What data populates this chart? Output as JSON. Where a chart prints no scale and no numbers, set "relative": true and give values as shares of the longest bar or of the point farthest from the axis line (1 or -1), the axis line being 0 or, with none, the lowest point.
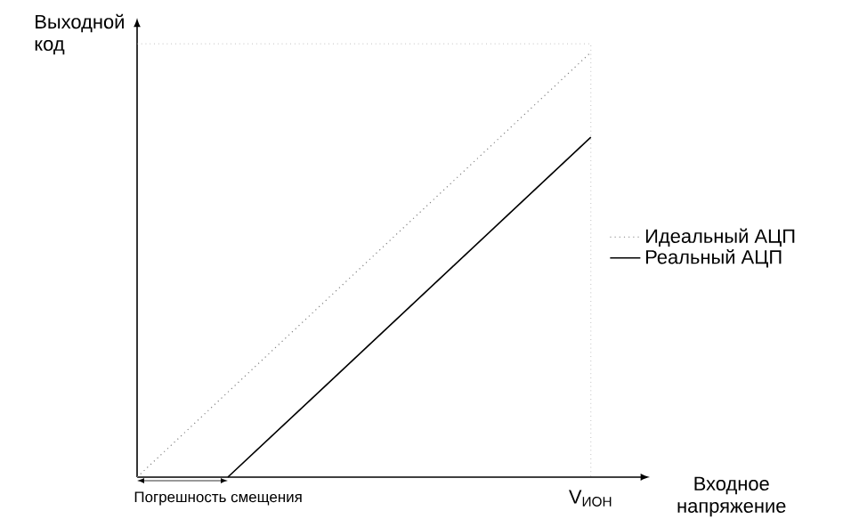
{
  "chart_data": {
    "type": "line",
    "relative": true,
    "xlabel": "Входное напряжение",
    "ylabel": "Выходной код",
    "legend": "right",
    "marker": "none",
    "categories": [
      null,
      null,
      null,
      null,
      null,
      null,
      null,
      null,
      null,
      null,
      null
    ],
    "series": [
      {
        "name": "Идеальный АЦП",
        "color": "#808080",
        "line_style": "dotted",
        "values": [
          0,
          0.1,
          0.2,
          0.3,
          0.4,
          0.5,
          0.6,
          0.7,
          0.8,
          0.9,
          1
        ]
      },
      {
        "name": "Реальный АЦП",
        "color": "#000000",
        "line_style": "solid",
        "values": [
          null,
          null,
          0,
          0.1,
          0.2,
          0.3,
          0.4,
          0.5,
          0.6,
          0.7,
          0.8
        ]
      }
    ],
    "ref_lines": [
      {
        "axis": "y",
        "value": 1.02,
        "color": "#a0a0a0",
        "line_style": "dotted"
      }
    ],
    "annotations": [
      "Погрешность смещения",
      "V$_{ИОН}$"
    ]
  }
}
